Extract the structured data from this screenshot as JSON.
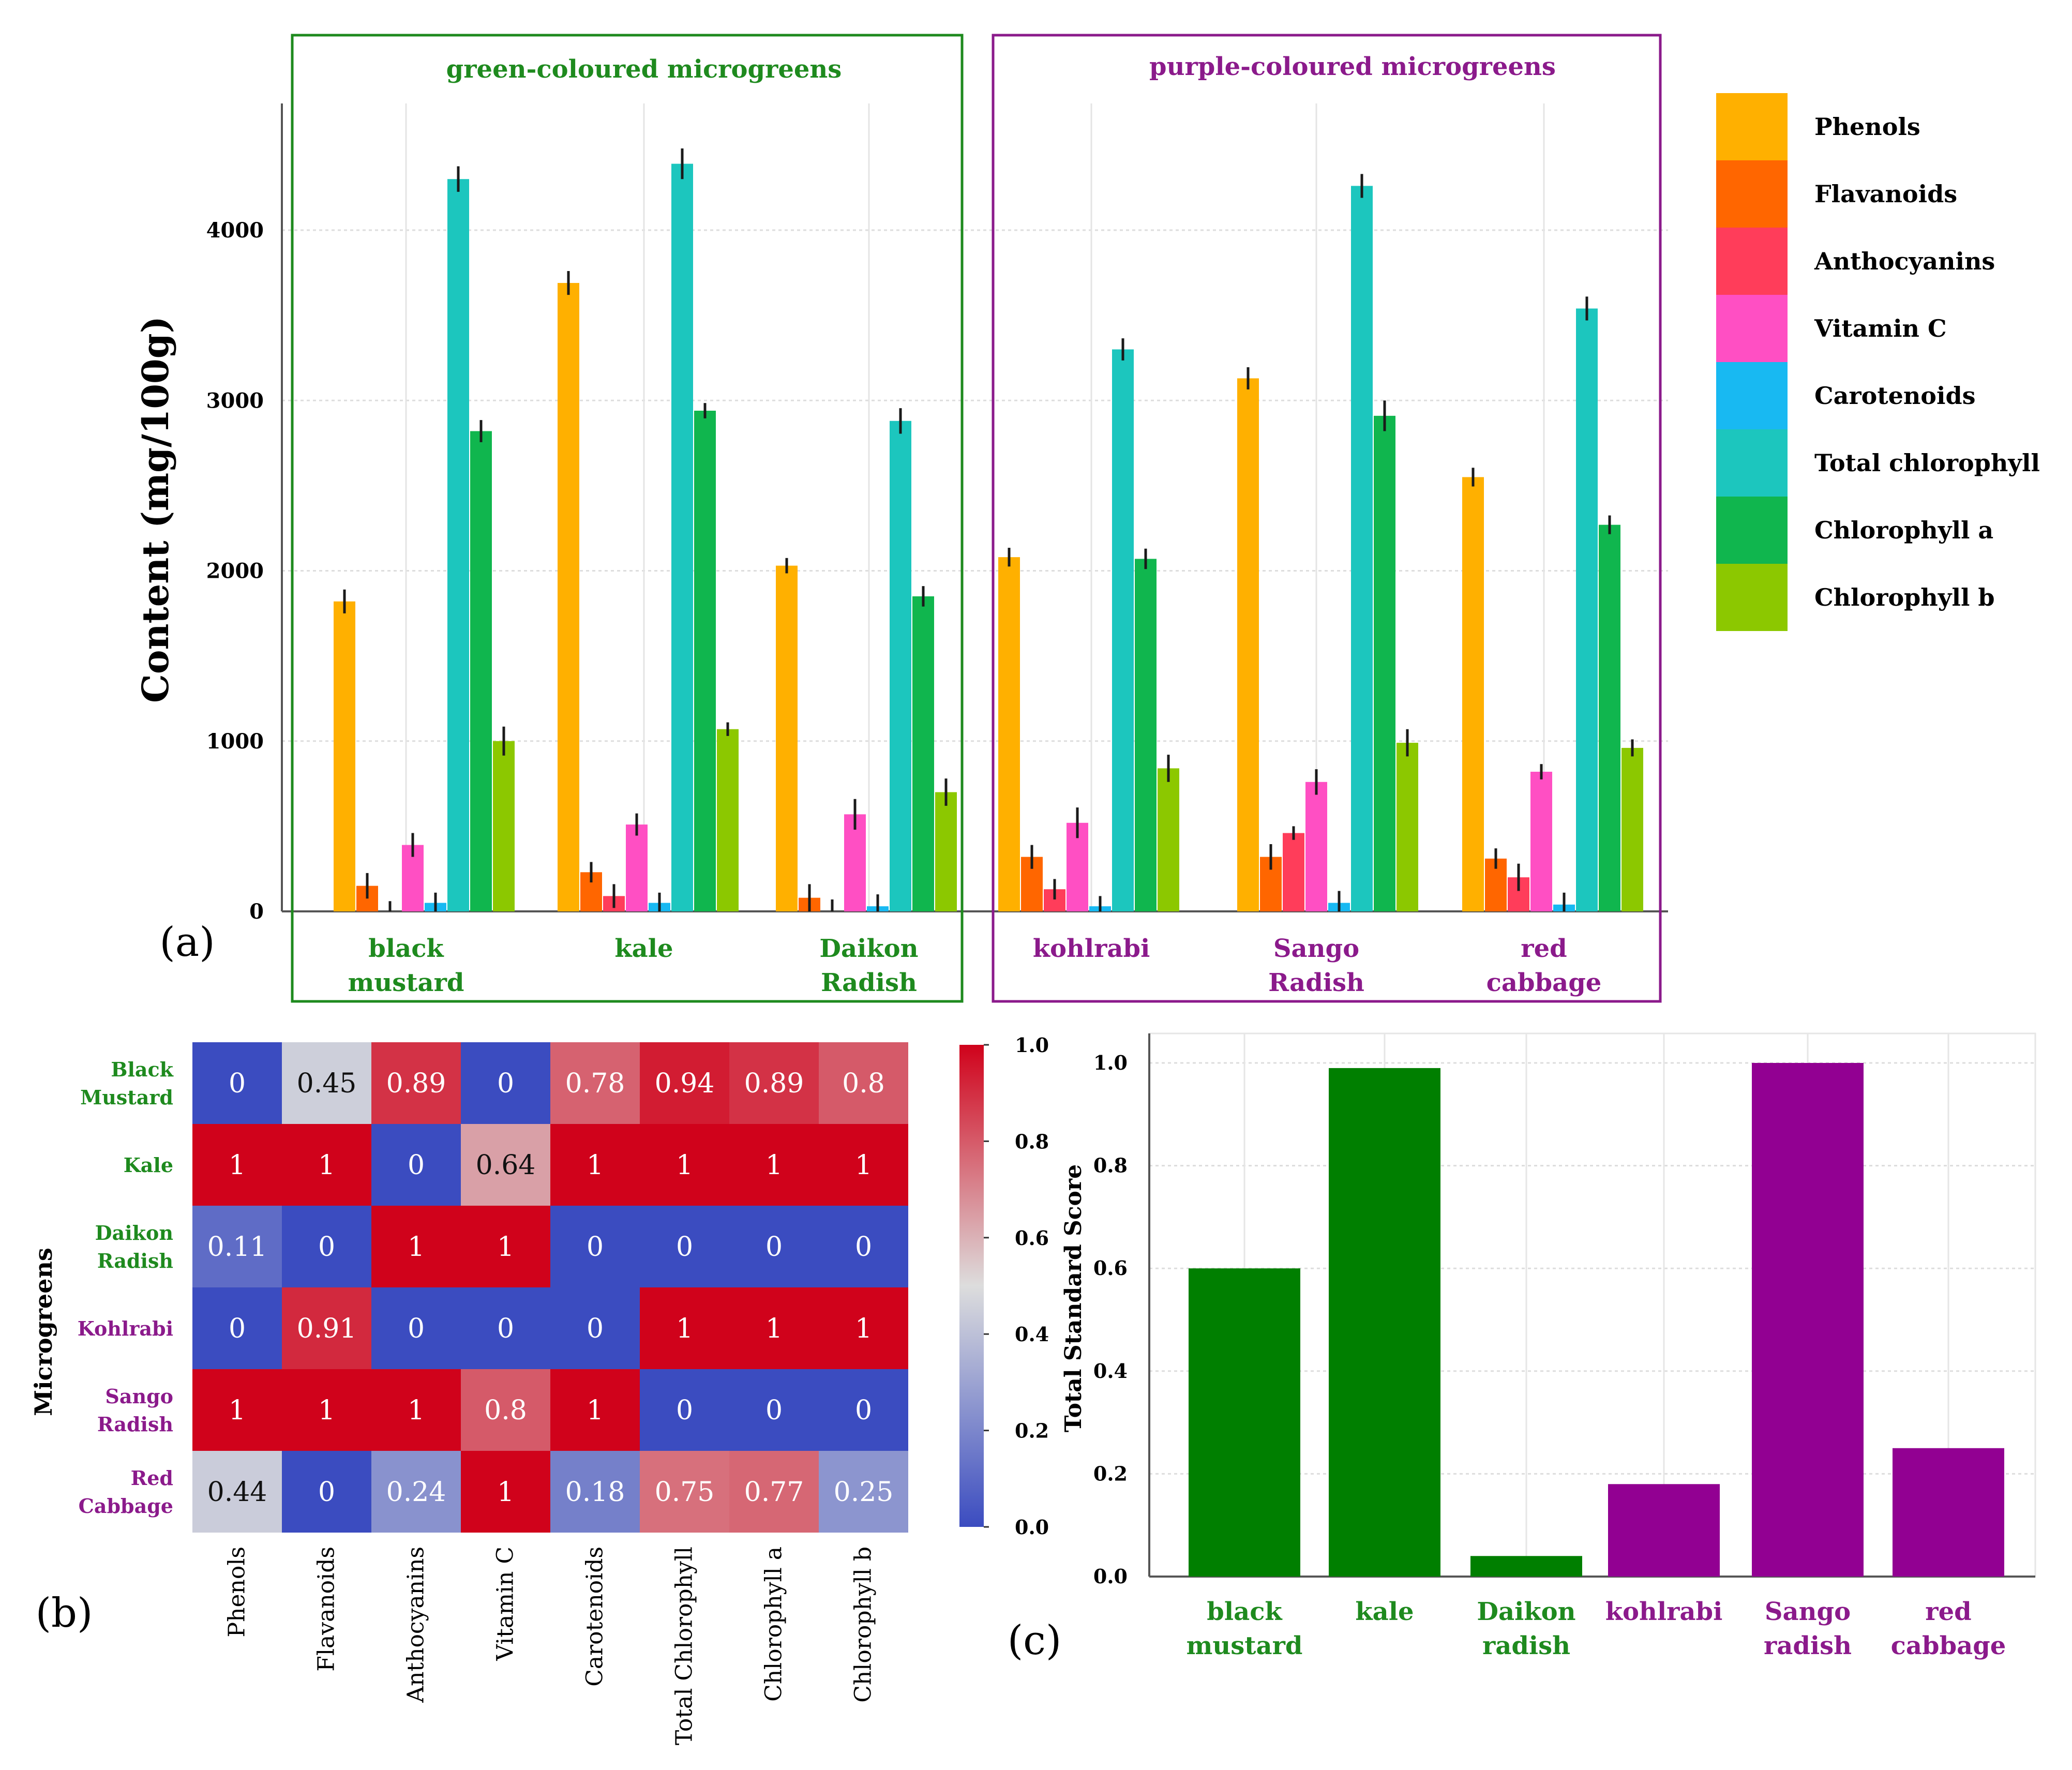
{
  "colors": {
    "green_group": "#1E8A1E",
    "purple_group": "#8B1A8B",
    "series": [
      "#FFB000",
      "#FF6600",
      "#FF3D5A",
      "#FF4FC3",
      "#18B9F2",
      "#1CC6BE",
      "#10B64E",
      "#8CC800"
    ],
    "heat_low": "#3B4CC0",
    "heat_mid": "#DDDDDD",
    "heat_high": "#D0021B",
    "bar_c_green": "#007F00",
    "bar_c_purple": "#920092"
  },
  "panel_labels": {
    "a": "(a)",
    "b": "(b)",
    "c": "(c)"
  },
  "chart_data": [
    {
      "type": "bar",
      "panel": "(a)",
      "ylabel": "Content (mg/100g)",
      "ylim": [
        0,
        4700
      ],
      "yticks": [
        0,
        1000,
        2000,
        3000,
        4000
      ],
      "grid": true,
      "group_titles": [
        "green-coloured microgreens",
        "purple-coloured microgreens"
      ],
      "categories": [
        {
          "name": "black mustard",
          "lines": [
            "black",
            "mustard"
          ],
          "group": "green"
        },
        {
          "name": "kale",
          "lines": [
            "kale"
          ],
          "group": "green"
        },
        {
          "name": "Daikon Radish",
          "lines": [
            "Daikon",
            "Radish"
          ],
          "group": "green"
        },
        {
          "name": "kohlrabi",
          "lines": [
            "kohlrabi"
          ],
          "group": "purple"
        },
        {
          "name": "Sango Radish",
          "lines": [
            "Sango",
            "Radish"
          ],
          "group": "purple"
        },
        {
          "name": "red cabbage",
          "lines": [
            "red",
            "cabbage"
          ],
          "group": "purple"
        }
      ],
      "series": [
        {
          "name": "Phenols",
          "values": [
            1820,
            3690,
            2030,
            2080,
            3130,
            2550
          ],
          "errors": [
            70,
            70,
            45,
            55,
            65,
            55
          ]
        },
        {
          "name": "Flavanoids",
          "values": [
            150,
            230,
            80,
            320,
            320,
            310
          ],
          "errors": [
            75,
            60,
            80,
            70,
            75,
            60
          ]
        },
        {
          "name": "Anthocyanins",
          "values": [
            0,
            90,
            0,
            130,
            460,
            200
          ],
          "errors": [
            60,
            70,
            70,
            60,
            40,
            80
          ]
        },
        {
          "name": "Vitamin C",
          "values": [
            390,
            510,
            570,
            520,
            760,
            820
          ],
          "errors": [
            70,
            65,
            90,
            90,
            75,
            45
          ]
        },
        {
          "name": "Carotenoids",
          "values": [
            50,
            50,
            30,
            30,
            50,
            40
          ],
          "errors": [
            60,
            60,
            70,
            60,
            70,
            70
          ]
        },
        {
          "name": "Total chlorophyll",
          "values": [
            4300,
            4390,
            2880,
            3300,
            4260,
            3540
          ],
          "errors": [
            75,
            90,
            75,
            65,
            70,
            70
          ]
        },
        {
          "name": "Chlorophyll a",
          "values": [
            2820,
            2940,
            1850,
            2070,
            2910,
            2270
          ],
          "errors": [
            65,
            45,
            60,
            60,
            90,
            55
          ]
        },
        {
          "name": "Chlorophyll b",
          "values": [
            1000,
            1070,
            700,
            840,
            990,
            960
          ],
          "errors": [
            85,
            40,
            80,
            80,
            80,
            50
          ]
        }
      ]
    },
    {
      "type": "heatmap",
      "panel": "(b)",
      "ylabel": "Microgreens",
      "rows": [
        {
          "lines": [
            "Black",
            "Mustard"
          ],
          "group": "green"
        },
        {
          "lines": [
            "Kale"
          ],
          "group": "green"
        },
        {
          "lines": [
            "Daikon",
            "Radish"
          ],
          "group": "green"
        },
        {
          "lines": [
            "Kohlrabi"
          ],
          "group": "purple"
        },
        {
          "lines": [
            "Sango",
            "Radish"
          ],
          "group": "purple"
        },
        {
          "lines": [
            "Red",
            "Cabbage"
          ],
          "group": "purple"
        }
      ],
      "columns": [
        "Phenols",
        "Flavanoids",
        "Anthocyanins",
        "Vitamin C",
        "Carotenoids",
        "Total Chlorophyll",
        "Chlorophyll a",
        "Chlorophyll b"
      ],
      "values": [
        [
          0,
          0.45,
          0.89,
          0,
          0.78,
          0.94,
          0.89,
          0.8
        ],
        [
          1,
          1,
          0,
          0.64,
          1,
          1,
          1,
          1
        ],
        [
          0.11,
          0,
          1,
          1,
          0,
          0,
          0,
          0
        ],
        [
          0,
          0.91,
          0,
          0,
          0,
          1,
          1,
          1
        ],
        [
          1,
          1,
          1,
          0.8,
          1,
          0,
          0,
          0
        ],
        [
          0.44,
          0,
          0.24,
          1,
          0.18,
          0.75,
          0.77,
          0.25
        ]
      ],
      "colorbar_ticks": [
        "0.0",
        "0.2",
        "0.4",
        "0.6",
        "0.8",
        "1.0"
      ],
      "vmin": 0,
      "vmax": 1
    },
    {
      "type": "bar",
      "panel": "(c)",
      "ylabel": "Total Standard Score",
      "ylim": [
        0,
        1.03
      ],
      "yticks": [
        "0.0",
        "0.2",
        "0.4",
        "0.6",
        "0.8",
        "1.0"
      ],
      "grid": true,
      "categories": [
        {
          "name": "black mustard",
          "lines": [
            "black",
            "mustard"
          ],
          "group": "green"
        },
        {
          "name": "kale",
          "lines": [
            "kale"
          ],
          "group": "green"
        },
        {
          "name": "Daikon radish",
          "lines": [
            "Daikon",
            "radish"
          ],
          "group": "green"
        },
        {
          "name": "kohlrabi",
          "lines": [
            "kohlrabi"
          ],
          "group": "purple"
        },
        {
          "name": "Sango radish",
          "lines": [
            "Sango",
            "radish"
          ],
          "group": "purple"
        },
        {
          "name": "red cabbage",
          "lines": [
            "red",
            "cabbage"
          ],
          "group": "purple"
        }
      ],
      "values": [
        0.6,
        0.99,
        0.04,
        0.18,
        1.0,
        0.25
      ]
    }
  ]
}
